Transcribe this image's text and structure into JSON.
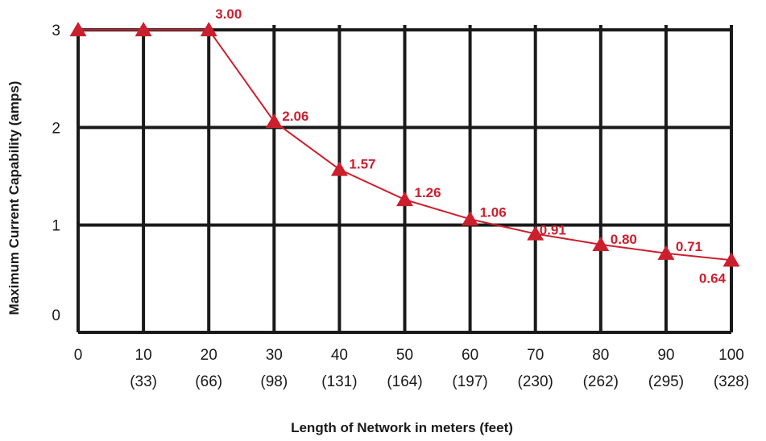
{
  "chart_data": {
    "type": "line",
    "title": "",
    "xlabel": "Length of Network in meters (feet)",
    "ylabel": "Maximum Current Capability (amps)",
    "x": [
      0,
      10,
      20,
      30,
      40,
      50,
      60,
      70,
      80,
      90,
      100
    ],
    "x_tick_labels": [
      "0",
      "10",
      "20",
      "30",
      "40",
      "50",
      "60",
      "70",
      "80",
      "90",
      "100"
    ],
    "x_tick_sublabels": [
      "",
      "(33)",
      "(66)",
      "(98)",
      "(131)",
      "(164)",
      "(197)",
      "(230)",
      "(262)",
      "(295)",
      "(328)"
    ],
    "y_ticks": [
      "0",
      "1",
      "2",
      "3"
    ],
    "xlim": [
      0,
      100
    ],
    "ylim": [
      -0.1,
      3.05
    ],
    "grid": true,
    "series": [
      {
        "values": [
          3.0,
          3.0,
          3.0,
          2.06,
          1.57,
          1.26,
          1.06,
          0.91,
          0.8,
          0.71,
          0.64
        ],
        "color": "#cc1f2d",
        "marker": "triangle"
      }
    ],
    "data_labels": [
      "",
      "",
      "3.00",
      "2.06",
      "1.57",
      "1.26",
      "1.06",
      "0.91",
      "0.80",
      "0.71",
      "0.64"
    ]
  }
}
